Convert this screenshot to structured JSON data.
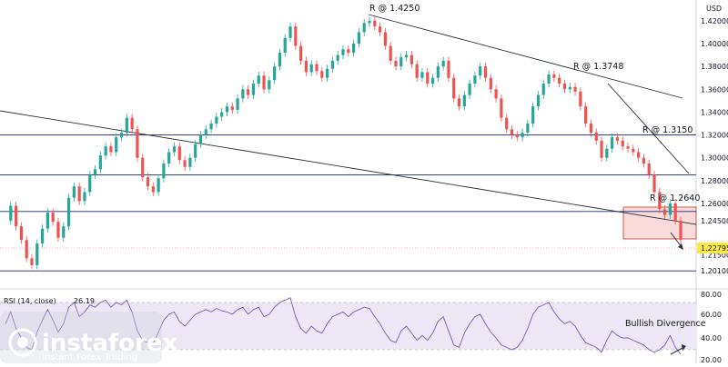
{
  "chart_data": {
    "type": "line",
    "currency": "USD",
    "price_axis": {
      "ylim": [
        1.19,
        1.435
      ],
      "ticks": [
        "1.42000",
        "1.40000",
        "1.38000",
        "1.36000",
        "1.34000",
        "1.32000",
        "1.30000",
        "1.28000",
        "1.26000",
        "1.24500",
        "1.21500",
        "1.20100"
      ],
      "current_price": "1.22795"
    },
    "price_series": [
      1.245,
      1.258,
      1.24,
      1.228,
      1.212,
      1.206,
      1.225,
      1.238,
      1.252,
      1.244,
      1.23,
      1.24,
      1.265,
      1.275,
      1.262,
      1.27,
      1.285,
      1.29,
      1.302,
      1.31,
      1.305,
      1.318,
      1.322,
      1.335,
      1.325,
      1.3,
      1.283,
      1.275,
      1.27,
      1.282,
      1.295,
      1.305,
      1.31,
      1.298,
      1.292,
      1.3,
      1.312,
      1.32,
      1.325,
      1.33,
      1.336,
      1.34,
      1.345,
      1.342,
      1.352,
      1.36,
      1.355,
      1.365,
      1.372,
      1.36,
      1.368,
      1.38,
      1.392,
      1.405,
      1.415,
      1.398,
      1.385,
      1.375,
      1.382,
      1.376,
      1.37,
      1.378,
      1.385,
      1.39,
      1.395,
      1.392,
      1.4,
      1.41,
      1.418,
      1.42,
      1.415,
      1.41,
      1.398,
      1.385,
      1.38,
      1.388,
      1.39,
      1.382,
      1.37,
      1.375,
      1.365,
      1.37,
      1.38,
      1.385,
      1.37,
      1.352,
      1.345,
      1.355,
      1.365,
      1.372,
      1.38,
      1.37,
      1.36,
      1.352,
      1.335,
      1.325,
      1.32,
      1.318,
      1.322,
      1.33,
      1.345,
      1.355,
      1.365,
      1.373,
      1.37,
      1.365,
      1.36,
      1.362,
      1.358,
      1.345,
      1.33,
      1.322,
      1.315,
      1.3,
      1.308,
      1.318,
      1.315,
      1.31,
      1.308,
      1.305,
      1.3,
      1.295,
      1.285,
      1.27,
      1.255,
      1.25,
      1.26,
      1.245,
      1.228
    ],
    "rsi": {
      "label": "RSI (14, close)",
      "value": "26.19",
      "ylim": [
        20,
        80
      ],
      "ticks": [
        "80.00",
        "60.00",
        "40.00",
        "20.00"
      ],
      "overbought": 70,
      "oversold": 30,
      "values": [
        52,
        62,
        48,
        40,
        32,
        30,
        45,
        55,
        64,
        55,
        45,
        52,
        66,
        70,
        58,
        62,
        68,
        66,
        70,
        72,
        66,
        70,
        68,
        72,
        62,
        46,
        38,
        36,
        35,
        45,
        55,
        60,
        62,
        54,
        50,
        55,
        60,
        62,
        64,
        62,
        65,
        63,
        62,
        60,
        64,
        66,
        60,
        64,
        66,
        58,
        60,
        66,
        70,
        72,
        74,
        58,
        48,
        44,
        50,
        46,
        44,
        52,
        58,
        60,
        62,
        58,
        62,
        64,
        66,
        65,
        58,
        52,
        44,
        38,
        36,
        46,
        50,
        44,
        38,
        42,
        38,
        44,
        54,
        58,
        46,
        34,
        32,
        44,
        52,
        58,
        60,
        52,
        45,
        40,
        34,
        32,
        30,
        32,
        38,
        48,
        60,
        66,
        68,
        70,
        62,
        56,
        52,
        54,
        50,
        42,
        36,
        34,
        32,
        28,
        38,
        46,
        42,
        40,
        40,
        38,
        36,
        34,
        30,
        28,
        30,
        34,
        42,
        32,
        26
      ]
    },
    "annotations": [
      "R @ 1.4250",
      "R @ 1.3748",
      "R @ 1.3150",
      "R @ 1.2640",
      "Bullish Divergence"
    ],
    "horizontal_levels": [
      1.32,
      1.285,
      1.253,
      1.201
    ],
    "grid": false
  },
  "branding": {
    "name": "instaforex",
    "tagline": "Instant Forex Trading"
  },
  "colors": {
    "up": "#26a69a",
    "down": "#ef5350",
    "level_line": "#1a237e",
    "trend_line": "#2a2e39",
    "rsi_line": "#7e57c2",
    "rsi_band": "#ede7f6",
    "zone_fill": "#f8d6d3",
    "zone_border": "#c0392b",
    "badge_bg": "#ffeb3b"
  }
}
